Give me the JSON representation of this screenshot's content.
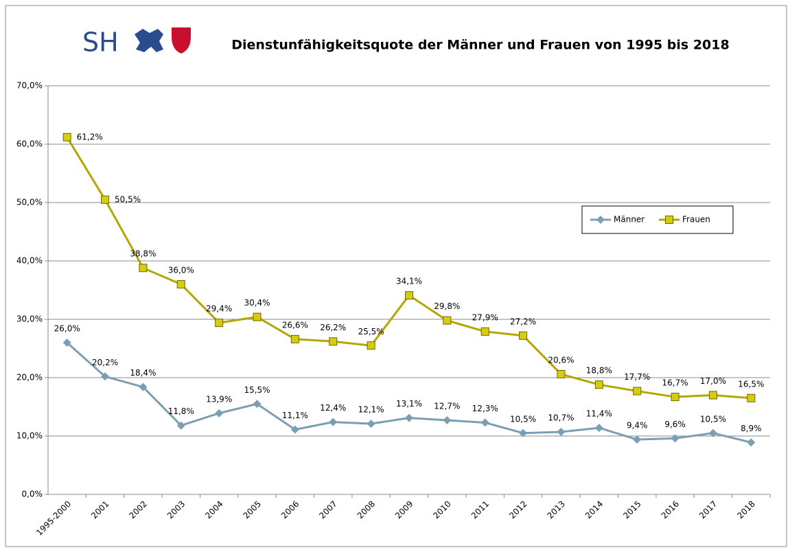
{
  "logo": "SH",
  "chart_data": {
    "type": "line",
    "title": "Dienstunfähigkeitsquote der Männer und Frauen von 1995 bis 2018",
    "categories": [
      "1995-2000",
      "2001",
      "2002",
      "2003",
      "2004",
      "2005",
      "2006",
      "2007",
      "2008",
      "2009",
      "2010",
      "2011",
      "2012",
      "2013",
      "2014",
      "2015",
      "2016",
      "2017",
      "2018"
    ],
    "series": [
      {
        "name": "Männer",
        "color": "#7a9fb2",
        "marker": "diamond",
        "values": [
          26.0,
          20.2,
          18.4,
          11.8,
          13.9,
          15.5,
          11.1,
          12.4,
          12.1,
          13.1,
          12.7,
          12.3,
          10.5,
          10.7,
          11.4,
          9.4,
          9.6,
          10.5,
          8.9
        ],
        "value_labels": [
          "26,0%",
          "20,2%",
          "18,4%",
          "11,8%",
          "13,9%",
          "15,5%",
          "11,1%",
          "12,4%",
          "12,1%",
          "13,1%",
          "12,7%",
          "12,3%",
          "10,5%",
          "10,7%",
          "11,4%",
          "9,4%",
          "9,6%",
          "10,5%",
          "8,9%"
        ]
      },
      {
        "name": "Frauen",
        "color": "#b3a600",
        "marker": "square",
        "values": [
          61.2,
          50.5,
          38.8,
          36.0,
          29.4,
          30.4,
          26.6,
          26.2,
          25.5,
          34.1,
          29.8,
          27.9,
          27.2,
          20.6,
          18.8,
          17.7,
          16.7,
          17.0,
          16.5
        ],
        "value_labels": [
          "61,2%",
          "50,5%",
          "38,8%",
          "36,0%",
          "29,4%",
          "30,4%",
          "26,6%",
          "26,2%",
          "25,5%",
          "34,1%",
          "29,8%",
          "27,9%",
          "27,2%",
          "20,6%",
          "18,8%",
          "17,7%",
          "16,7%",
          "17,0%",
          "16,5%"
        ]
      }
    ],
    "ylim": [
      0,
      70
    ],
    "yticks": [
      {
        "value": 0,
        "label": "0,0%"
      },
      {
        "value": 10,
        "label": "10,0%"
      },
      {
        "value": 20,
        "label": "20,0%"
      },
      {
        "value": 30,
        "label": "30,0%"
      },
      {
        "value": 40,
        "label": "40,0%"
      },
      {
        "value": 50,
        "label": "50,0%"
      },
      {
        "value": 60,
        "label": "60,0%"
      },
      {
        "value": 70,
        "label": "70,0%"
      }
    ],
    "grid": true,
    "legend": "right"
  }
}
